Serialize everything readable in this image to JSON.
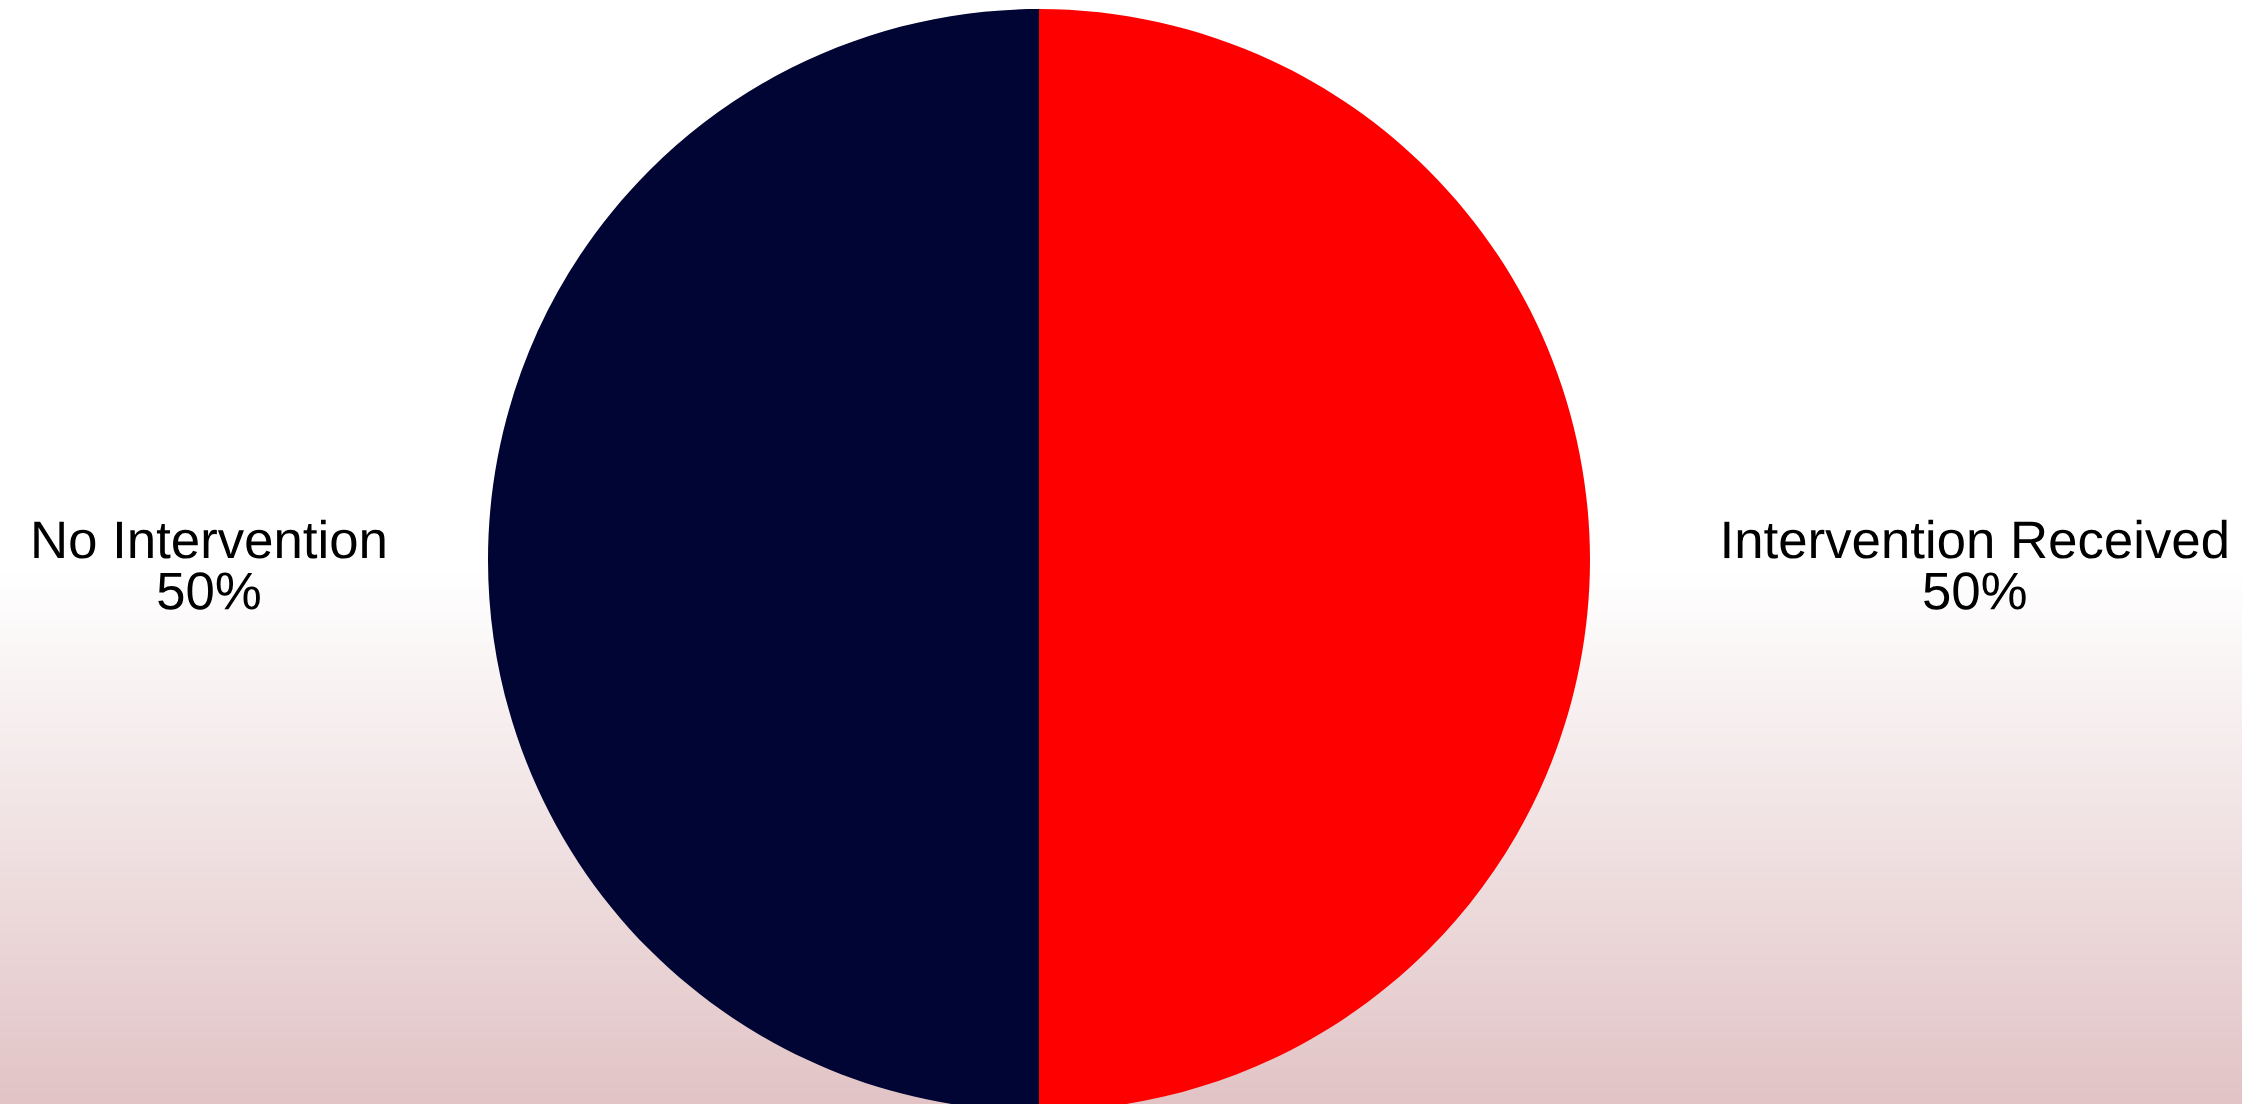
{
  "chart_data": {
    "type": "pie",
    "categories": [
      "Intervention Received",
      "No Intervention"
    ],
    "values": [
      50,
      50
    ],
    "colors": [
      "#ff0000",
      "#000533"
    ],
    "value_labels": [
      "50%",
      "50%"
    ],
    "legend": false
  }
}
